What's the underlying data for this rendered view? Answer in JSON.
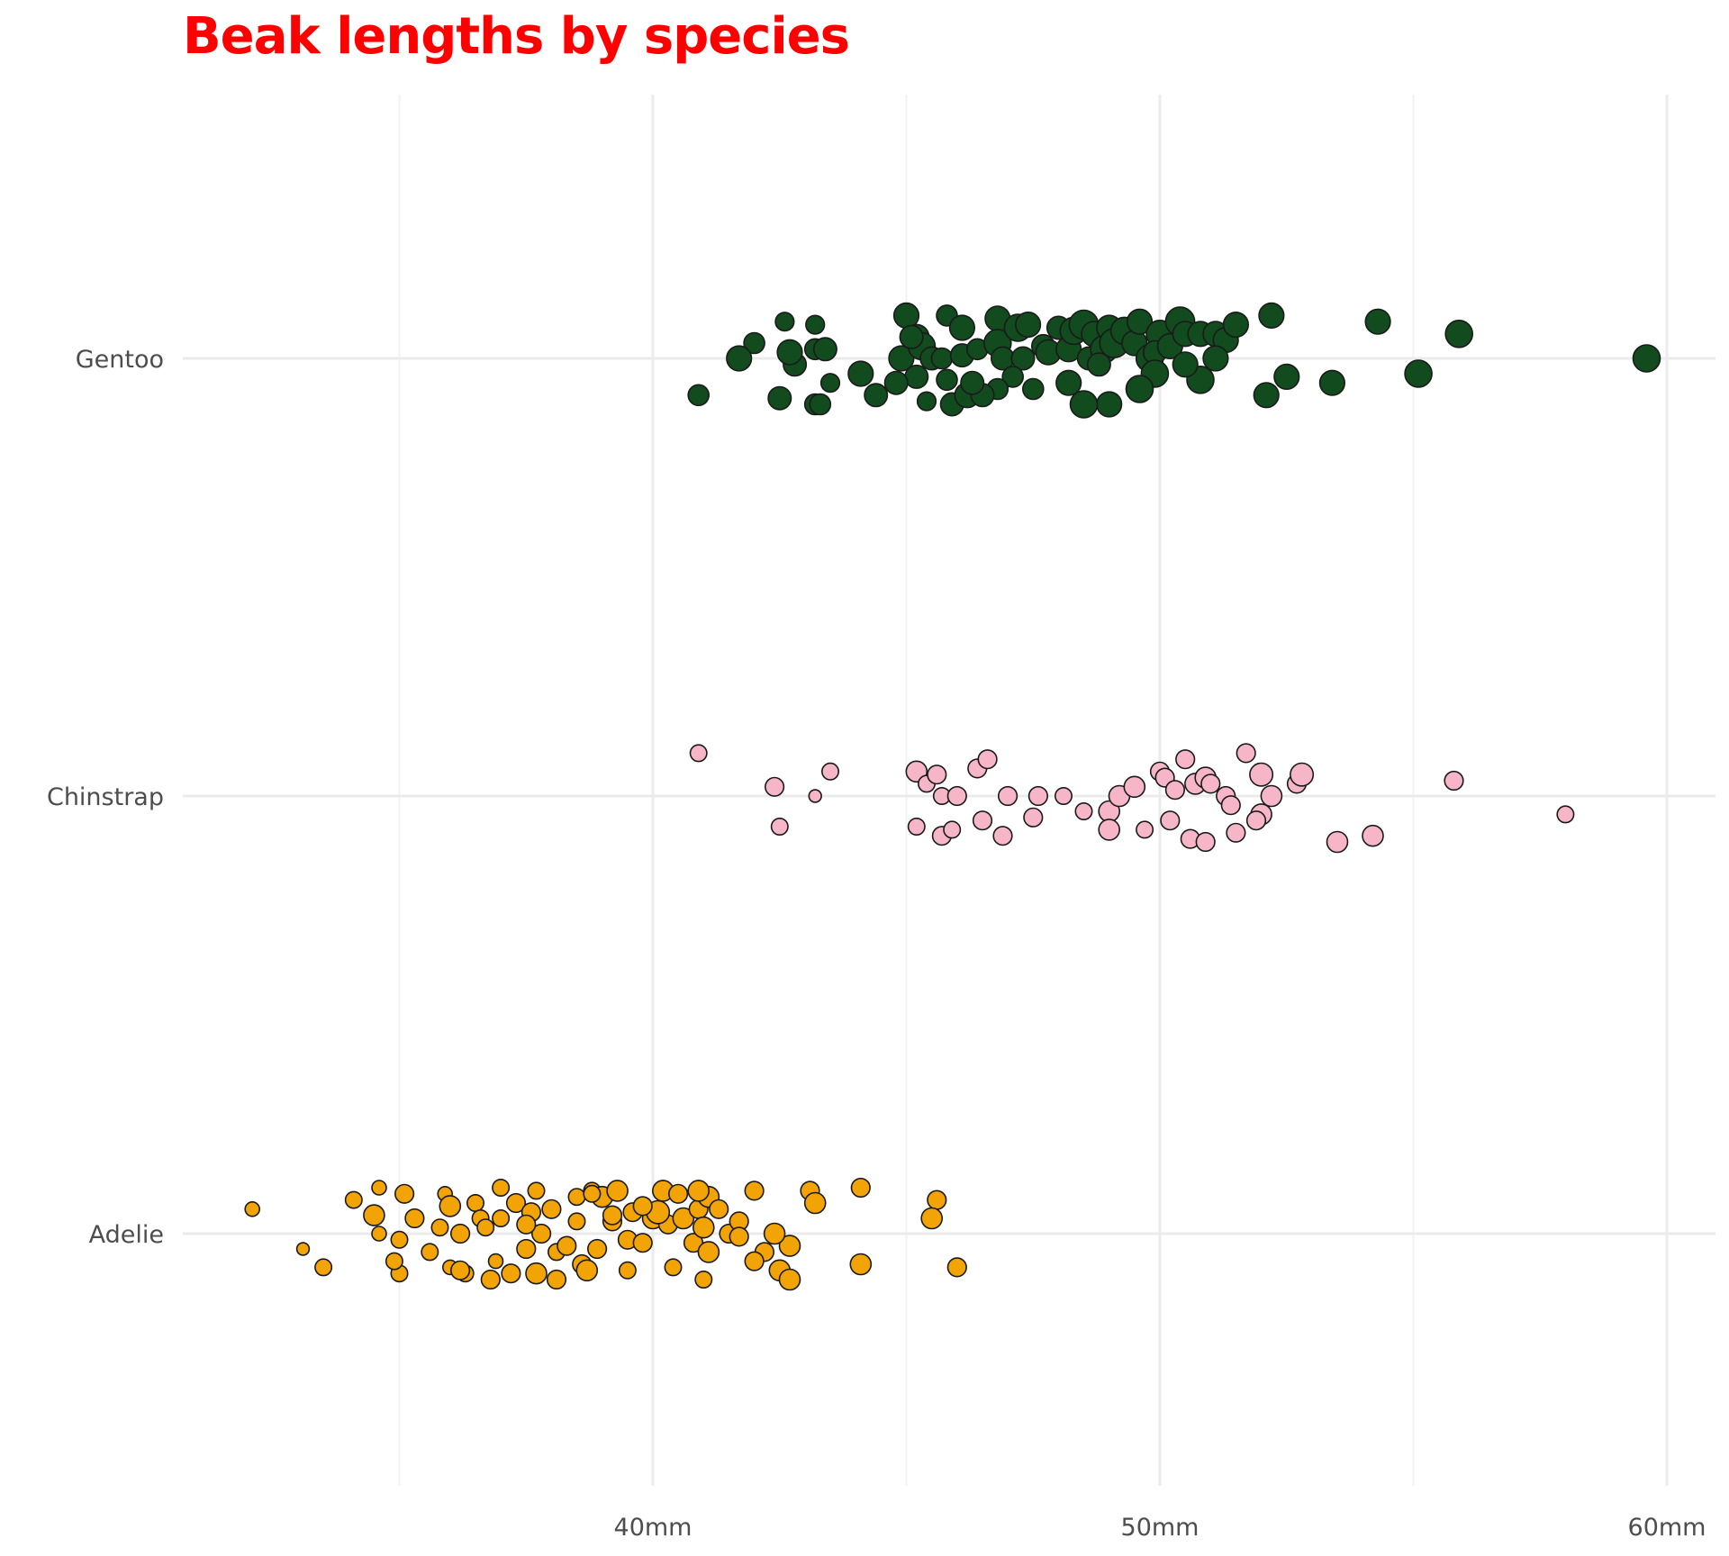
{
  "chart_data": {
    "type": "scatter",
    "title": "Beak lengths by species",
    "xlabel": "",
    "ylabel": "",
    "xlim": [
      31.5,
      61
    ],
    "x_ticks": [
      {
        "value": 40,
        "label": "40mm"
      },
      {
        "value": 50,
        "label": "50mm"
      },
      {
        "value": 60,
        "label": "60mm"
      }
    ],
    "x_minor_gridlines": [
      35,
      45,
      55
    ],
    "categories": [
      "Adelie",
      "Chinstrap",
      "Gentoo"
    ],
    "legend": "none",
    "grid": true,
    "point_size_note": "size varies per point",
    "series": [
      {
        "category": "Gentoo",
        "color": "#124b1e",
        "points": [
          [
            40.9,
            -0.12,
            1.0
          ],
          [
            42.0,
            0.05,
            1.0
          ],
          [
            41.7,
            0.0,
            1.2
          ],
          [
            42.6,
            0.12,
            0.9
          ],
          [
            43.2,
            0.11,
            0.9
          ],
          [
            42.5,
            -0.13,
            1.1
          ],
          [
            42.8,
            -0.02,
            1.1
          ],
          [
            42.7,
            0.02,
            1.2
          ],
          [
            43.2,
            0.03,
            1.0
          ],
          [
            43.4,
            0.03,
            1.1
          ],
          [
            43.2,
            -0.15,
            1.0
          ],
          [
            43.5,
            -0.08,
            0.9
          ],
          [
            43.3,
            -0.15,
            1.0
          ],
          [
            44.1,
            -0.05,
            1.2
          ],
          [
            44.4,
            -0.12,
            1.1
          ],
          [
            44.9,
            0.0,
            1.2
          ],
          [
            45.0,
            0.14,
            1.2
          ],
          [
            45.2,
            0.07,
            1.2
          ],
          [
            45.3,
            0.04,
            1.3
          ],
          [
            45.5,
            0.0,
            1.1
          ],
          [
            45.1,
            0.07,
            1.1
          ],
          [
            45.4,
            -0.14,
            0.9
          ],
          [
            45.8,
            0.14,
            1.0
          ],
          [
            45.7,
            0.0,
            1.0
          ],
          [
            45.9,
            -0.15,
            1.1
          ],
          [
            46.1,
            0.1,
            1.2
          ],
          [
            46.2,
            -0.12,
            1.2
          ],
          [
            46.1,
            0.01,
            1.1
          ],
          [
            46.4,
            0.03,
            1.0
          ],
          [
            46.8,
            0.13,
            1.2
          ],
          [
            46.8,
            0.05,
            1.3
          ],
          [
            46.9,
            0.0,
            1.1
          ],
          [
            47.2,
            0.1,
            1.3
          ],
          [
            47.3,
            0.0,
            1.1
          ],
          [
            47.4,
            0.11,
            1.2
          ],
          [
            47.7,
            0.04,
            1.1
          ],
          [
            47.8,
            0.02,
            1.2
          ],
          [
            48.0,
            0.1,
            1.1
          ],
          [
            48.2,
            0.03,
            1.2
          ],
          [
            48.3,
            0.09,
            1.3
          ],
          [
            48.5,
            0.11,
            1.4
          ],
          [
            48.7,
            0.08,
            1.2
          ],
          [
            48.6,
            0.0,
            1.1
          ],
          [
            48.9,
            0.03,
            1.3
          ],
          [
            48.8,
            -0.02,
            1.1
          ],
          [
            49.0,
            0.1,
            1.2
          ],
          [
            49.1,
            0.05,
            1.4
          ],
          [
            49.3,
            0.09,
            1.3
          ],
          [
            49.5,
            0.05,
            1.2
          ],
          [
            49.6,
            0.12,
            1.2
          ],
          [
            49.8,
            0.0,
            1.3
          ],
          [
            50.0,
            0.08,
            1.3
          ],
          [
            49.9,
            0.02,
            1.1
          ],
          [
            50.2,
            0.04,
            1.2
          ],
          [
            50.4,
            0.12,
            1.4
          ],
          [
            50.5,
            0.08,
            1.2
          ],
          [
            50.8,
            -0.07,
            1.3
          ],
          [
            50.5,
            -0.02,
            1.2
          ],
          [
            50.8,
            0.08,
            1.2
          ],
          [
            51.1,
            0.08,
            1.2
          ],
          [
            51.3,
            0.06,
            1.2
          ],
          [
            51.1,
            0.0,
            1.2
          ],
          [
            51.5,
            0.11,
            1.2
          ],
          [
            49.9,
            -0.05,
            1.3
          ],
          [
            49.6,
            -0.1,
            1.3
          ],
          [
            49.0,
            -0.15,
            1.2
          ],
          [
            48.5,
            -0.15,
            1.3
          ],
          [
            48.2,
            -0.08,
            1.2
          ],
          [
            47.5,
            -0.1,
            1.0
          ],
          [
            47.1,
            -0.06,
            1.0
          ],
          [
            46.8,
            -0.1,
            1.0
          ],
          [
            46.5,
            -0.12,
            1.1
          ],
          [
            46.3,
            -0.08,
            1.1
          ],
          [
            45.8,
            -0.07,
            1.0
          ],
          [
            45.2,
            -0.06,
            1.1
          ],
          [
            44.8,
            -0.08,
            1.1
          ],
          [
            52.2,
            0.14,
            1.2
          ],
          [
            52.1,
            -0.12,
            1.2
          ],
          [
            52.5,
            -0.06,
            1.2
          ],
          [
            53.4,
            -0.08,
            1.2
          ],
          [
            54.3,
            0.12,
            1.2
          ],
          [
            55.1,
            -0.05,
            1.3
          ],
          [
            55.9,
            0.08,
            1.3
          ],
          [
            59.6,
            0.0,
            1.3
          ]
        ]
      },
      {
        "category": "Chinstrap",
        "color": "#f7b6c8",
        "points": [
          [
            40.9,
            0.14,
            0.8
          ],
          [
            42.4,
            0.03,
            0.9
          ],
          [
            42.5,
            -0.1,
            0.8
          ],
          [
            43.2,
            0.0,
            0.6
          ],
          [
            43.5,
            0.08,
            0.8
          ],
          [
            45.2,
            0.08,
            1.0
          ],
          [
            45.4,
            0.04,
            0.8
          ],
          [
            45.6,
            0.07,
            0.9
          ],
          [
            45.7,
            0.0,
            0.8
          ],
          [
            46.0,
            0.0,
            0.9
          ],
          [
            45.2,
            -0.1,
            0.8
          ],
          [
            45.7,
            -0.13,
            0.9
          ],
          [
            46.4,
            0.09,
            0.9
          ],
          [
            46.6,
            0.12,
            0.9
          ],
          [
            46.5,
            -0.08,
            0.9
          ],
          [
            46.9,
            -0.13,
            0.9
          ],
          [
            47.0,
            0.0,
            0.9
          ],
          [
            47.5,
            -0.07,
            0.9
          ],
          [
            47.6,
            0.0,
            0.9
          ],
          [
            48.1,
            0.0,
            0.8
          ],
          [
            48.5,
            -0.05,
            0.8
          ],
          [
            49.0,
            -0.05,
            1.0
          ],
          [
            49.2,
            0.0,
            1.0
          ],
          [
            49.5,
            0.03,
            1.0
          ],
          [
            50.0,
            0.08,
            0.9
          ],
          [
            50.1,
            0.06,
            0.9
          ],
          [
            50.3,
            0.02,
            0.9
          ],
          [
            50.5,
            0.12,
            0.9
          ],
          [
            50.7,
            0.04,
            1.0
          ],
          [
            50.9,
            0.06,
            1.0
          ],
          [
            51.0,
            0.04,
            0.9
          ],
          [
            51.3,
            0.0,
            0.9
          ],
          [
            51.4,
            -0.03,
            0.9
          ],
          [
            51.7,
            0.14,
            0.9
          ],
          [
            52.0,
            0.07,
            1.1
          ],
          [
            52.2,
            0.0,
            1.0
          ],
          [
            52.0,
            -0.06,
            1.0
          ],
          [
            52.7,
            0.04,
            0.9
          ],
          [
            52.8,
            0.07,
            1.1
          ],
          [
            50.2,
            -0.08,
            0.9
          ],
          [
            50.6,
            -0.14,
            0.9
          ],
          [
            50.9,
            -0.15,
            0.9
          ],
          [
            51.5,
            -0.12,
            0.9
          ],
          [
            51.9,
            -0.08,
            0.9
          ],
          [
            53.5,
            -0.15,
            1.0
          ],
          [
            54.2,
            -0.13,
            1.0
          ],
          [
            55.8,
            0.05,
            0.9
          ],
          [
            58.0,
            -0.06,
            0.8
          ],
          [
            49.0,
            -0.11,
            1.0
          ],
          [
            49.7,
            -0.11,
            0.8
          ],
          [
            45.9,
            -0.11,
            0.8
          ]
        ]
      },
      {
        "category": "Adelie",
        "color": "#f2a305",
        "points": [
          [
            32.1,
            0.08,
            0.7
          ],
          [
            33.1,
            -0.05,
            0.6
          ],
          [
            33.5,
            -0.11,
            0.8
          ],
          [
            34.1,
            0.11,
            0.8
          ],
          [
            34.6,
            0.15,
            0.7
          ],
          [
            34.6,
            0.0,
            0.7
          ],
          [
            35.0,
            -0.02,
            0.8
          ],
          [
            35.1,
            0.13,
            0.9
          ],
          [
            35.3,
            0.05,
            0.9
          ],
          [
            35.0,
            -0.13,
            0.8
          ],
          [
            35.6,
            -0.06,
            0.8
          ],
          [
            35.9,
            0.13,
            0.7
          ],
          [
            36.0,
            -0.11,
            0.7
          ],
          [
            36.2,
            0.0,
            0.9
          ],
          [
            36.3,
            -0.13,
            0.8
          ],
          [
            36.5,
            0.1,
            0.8
          ],
          [
            36.6,
            0.05,
            0.8
          ],
          [
            36.7,
            0.02,
            0.8
          ],
          [
            36.9,
            -0.09,
            0.7
          ],
          [
            37.0,
            0.05,
            0.8
          ],
          [
            37.0,
            0.15,
            0.8
          ],
          [
            37.2,
            -0.13,
            0.9
          ],
          [
            37.3,
            0.1,
            0.9
          ],
          [
            37.5,
            -0.05,
            0.9
          ],
          [
            37.7,
            0.14,
            0.8
          ],
          [
            37.8,
            0.0,
            0.9
          ],
          [
            38.0,
            0.08,
            0.9
          ],
          [
            38.1,
            -0.06,
            0.8
          ],
          [
            38.3,
            -0.04,
            0.9
          ],
          [
            38.5,
            0.12,
            0.8
          ],
          [
            38.6,
            -0.1,
            0.9
          ],
          [
            38.8,
            0.14,
            0.8
          ],
          [
            38.9,
            -0.05,
            0.9
          ],
          [
            39.0,
            0.12,
            1.0
          ],
          [
            39.2,
            0.04,
            0.9
          ],
          [
            39.3,
            0.14,
            1.0
          ],
          [
            39.5,
            -0.02,
            0.9
          ],
          [
            39.6,
            0.07,
            0.9
          ],
          [
            39.8,
            -0.03,
            0.9
          ],
          [
            40.0,
            0.05,
            1.0
          ],
          [
            40.2,
            0.14,
            1.0
          ],
          [
            40.3,
            0.03,
            0.9
          ],
          [
            40.5,
            0.13,
            0.9
          ],
          [
            40.6,
            0.05,
            1.0
          ],
          [
            40.8,
            -0.03,
            0.9
          ],
          [
            40.9,
            0.08,
            0.9
          ],
          [
            41.0,
            0.02,
            1.0
          ],
          [
            41.1,
            0.12,
            1.0
          ],
          [
            41.3,
            0.08,
            0.9
          ],
          [
            41.5,
            0.0,
            0.9
          ],
          [
            41.7,
            0.04,
            0.9
          ],
          [
            42.0,
            0.14,
            0.9
          ],
          [
            42.2,
            -0.06,
            0.9
          ],
          [
            42.5,
            -0.12,
            1.0
          ],
          [
            42.7,
            -0.04,
            1.0
          ],
          [
            43.1,
            0.14,
            0.9
          ],
          [
            43.2,
            0.1,
            1.0
          ],
          [
            44.1,
            0.15,
            0.9
          ],
          [
            44.1,
            -0.1,
            1.0
          ],
          [
            45.6,
            0.11,
            0.9
          ],
          [
            45.5,
            0.05,
            1.0
          ],
          [
            46.0,
            -0.11,
            0.9
          ],
          [
            36.0,
            0.09,
            1.0
          ],
          [
            34.5,
            0.06,
            1.0
          ],
          [
            37.6,
            0.07,
            0.9
          ],
          [
            38.5,
            0.04,
            0.8
          ],
          [
            39.2,
            0.06,
            0.9
          ],
          [
            40.1,
            0.07,
            1.1
          ],
          [
            40.9,
            0.14,
            1.0
          ],
          [
            41.1,
            -0.06,
            1.0
          ],
          [
            41.7,
            -0.01,
            0.9
          ],
          [
            42.0,
            -0.09,
            0.9
          ],
          [
            42.4,
            0.0,
            1.0
          ],
          [
            42.7,
            -0.15,
            1.0
          ],
          [
            41.0,
            -0.15,
            0.8
          ],
          [
            40.4,
            -0.11,
            0.8
          ],
          [
            39.5,
            -0.12,
            0.8
          ],
          [
            38.7,
            -0.12,
            1.0
          ],
          [
            38.1,
            -0.15,
            0.9
          ],
          [
            37.7,
            -0.13,
            1.0
          ],
          [
            36.8,
            -0.15,
            0.9
          ],
          [
            36.2,
            -0.12,
            0.9
          ],
          [
            39.8,
            0.09,
            0.9
          ],
          [
            38.8,
            0.13,
            0.8
          ],
          [
            37.5,
            0.03,
            0.9
          ],
          [
            35.8,
            0.02,
            0.8
          ],
          [
            34.9,
            -0.09,
            0.8
          ]
        ]
      }
    ]
  }
}
